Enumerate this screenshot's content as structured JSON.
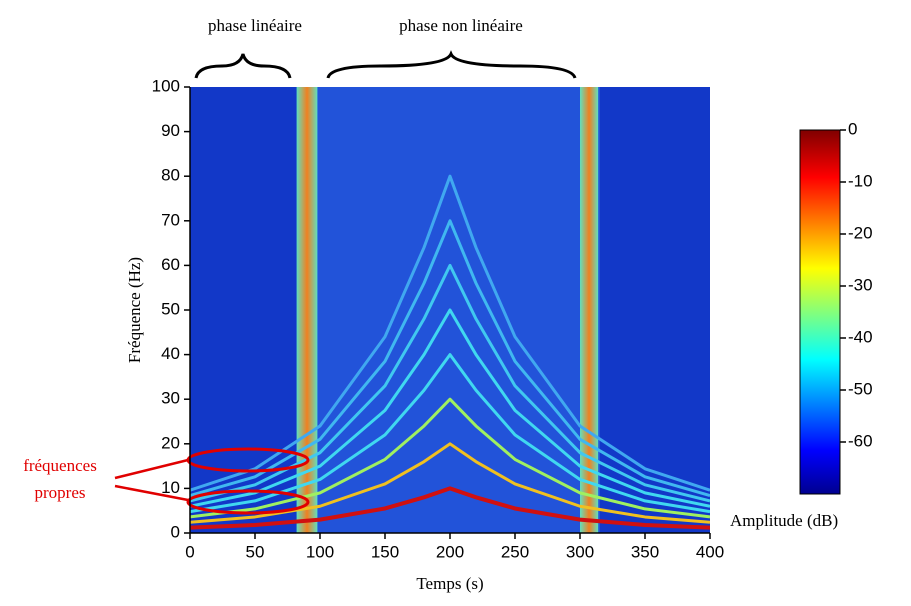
{
  "chart_data": {
    "type": "spectrogram",
    "xlabel": "Temps (s)",
    "ylabel": "Fréquence (Hz)",
    "xlim": [
      0,
      400
    ],
    "ylim": [
      0,
      100
    ],
    "xticks": [
      0,
      50,
      100,
      150,
      200,
      250,
      300,
      350,
      400
    ],
    "yticks": [
      0,
      10,
      20,
      30,
      40,
      50,
      60,
      70,
      80,
      90,
      100
    ],
    "x": [
      0,
      50,
      100,
      150,
      180,
      200,
      220,
      250,
      300,
      350,
      400
    ],
    "series": [
      {
        "color": "#d01010",
        "values": [
          1.2,
          1.8,
          3,
          5.5,
          8,
          10,
          8,
          5.5,
          3,
          1.8,
          1.2
        ]
      },
      {
        "color": "#f0c020",
        "values": [
          2.4,
          3.6,
          6,
          11,
          16,
          20,
          16,
          11,
          6,
          3.6,
          2.4
        ]
      },
      {
        "color": "#a0f060",
        "values": [
          3.6,
          5.4,
          9,
          16.5,
          24,
          30,
          24,
          16.5,
          9,
          5.4,
          3.6
        ]
      },
      {
        "color": "#40d8f0",
        "values": [
          4.8,
          7.2,
          12,
          22,
          32,
          40,
          32,
          22,
          12,
          7.2,
          4.8
        ]
      },
      {
        "color": "#40d8f0",
        "values": [
          6,
          9,
          15,
          27.5,
          40,
          50,
          40,
          27.5,
          15,
          9,
          6
        ]
      },
      {
        "color": "#40c8f0",
        "values": [
          7.2,
          10.8,
          18,
          33,
          48,
          60,
          48,
          33,
          18,
          10.8,
          7.2
        ]
      },
      {
        "color": "#40b8f0",
        "values": [
          8.4,
          12.6,
          21,
          38.5,
          56,
          70,
          56,
          38.5,
          21,
          12.6,
          8.4
        ]
      },
      {
        "color": "#40a8f0",
        "values": [
          9.6,
          14.4,
          24,
          44,
          64,
          80,
          64,
          44,
          24,
          14.4,
          9.6
        ]
      }
    ],
    "bands": [
      [
        82,
        98
      ],
      [
        300,
        314
      ]
    ],
    "colorbar": {
      "label": "Amplitude (dB)",
      "lim": [
        -70,
        0
      ],
      "ticks": [
        0,
        -10,
        -20,
        -30,
        -40,
        -50,
        -60
      ]
    },
    "annotations": {
      "linear": "phase linéaire",
      "nonlinear": "phase non linéaire",
      "modes": [
        "fréquences",
        "propres"
      ]
    }
  }
}
